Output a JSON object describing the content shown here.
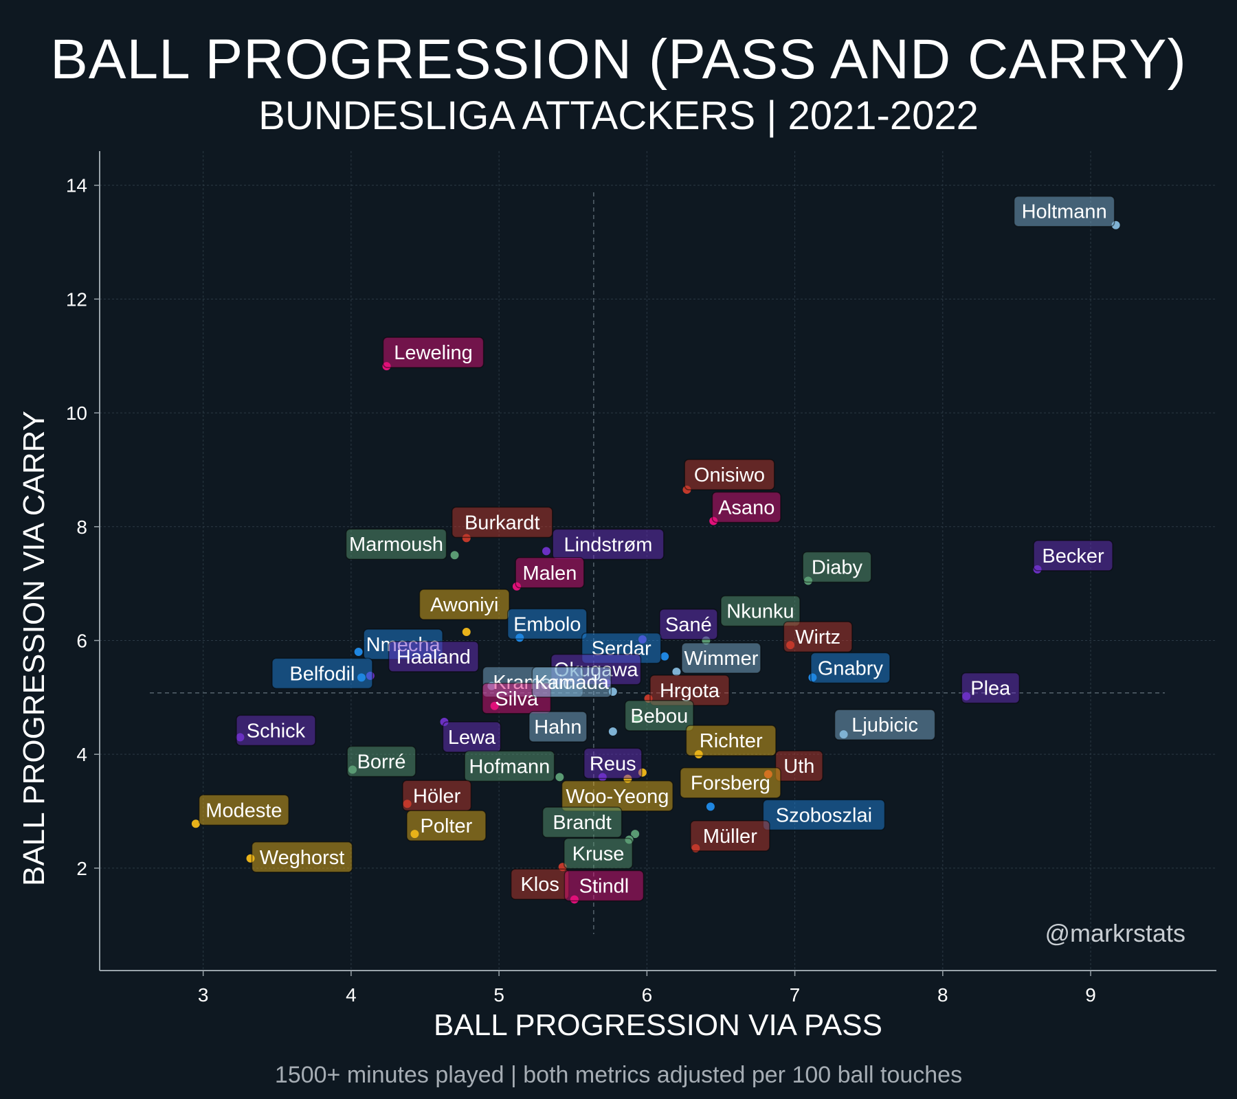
{
  "page": {
    "title": "BALL PROGRESSION (PASS AND CARRY)",
    "subtitle": "BUNDESLIGA ATTACKERS | 2021-2022",
    "footnote": "1500+ minutes played | both metrics adjusted per 100 ball touches",
    "watermark": "@markrstats"
  },
  "colors": {
    "background": "#0e1821",
    "red": "#c0392b",
    "pink": "#e0117a",
    "purple": "#6a30c2",
    "green": "#5a9a73",
    "blue": "#1f86e0",
    "lightblue": "#7fb2d4",
    "yellow": "#e8b21a"
  },
  "chart_data": {
    "type": "scatter",
    "title": "BALL PROGRESSION (PASS AND CARRY)",
    "subtitle": "BUNDESLIGA ATTACKERS | 2021-2022",
    "xlabel": "BALL PROGRESSION VIA PASS",
    "ylabel": "BALL PROGRESSION VIA CARRY",
    "xlim": [
      2.3,
      9.85
    ],
    "ylim": [
      0.2,
      14.6
    ],
    "xticks": [
      3,
      4,
      5,
      6,
      7,
      8,
      9
    ],
    "yticks": [
      2,
      4,
      6,
      8,
      10,
      12,
      14
    ],
    "grid": true,
    "mean_x": 5.64,
    "mean_y": 5.08,
    "points": [
      {
        "name": "Holtmann",
        "x": 9.17,
        "y": 13.3,
        "color": "lightblue"
      },
      {
        "name": "Leweling",
        "x": 4.24,
        "y": 10.82,
        "color": "pink"
      },
      {
        "name": "Onisiwo",
        "x": 6.27,
        "y": 8.65,
        "color": "red"
      },
      {
        "name": "Asano",
        "x": 6.45,
        "y": 8.1,
        "color": "pink"
      },
      {
        "name": "Burkardt",
        "x": 4.78,
        "y": 7.8,
        "color": "red"
      },
      {
        "name": "Marmoush",
        "x": 4.7,
        "y": 7.5,
        "color": "green"
      },
      {
        "name": "Lindstrøm",
        "x": 5.32,
        "y": 7.57,
        "color": "purple"
      },
      {
        "name": "Becker",
        "x": 8.64,
        "y": 7.25,
        "color": "purple"
      },
      {
        "name": "Diaby",
        "x": 7.09,
        "y": 7.05,
        "color": "green"
      },
      {
        "name": "Malen",
        "x": 5.12,
        "y": 6.95,
        "color": "pink"
      },
      {
        "name": "Awoniyi",
        "x": 4.78,
        "y": 6.15,
        "color": "yellow"
      },
      {
        "name": "Nkunku",
        "x": 6.4,
        "y": 6.0,
        "color": "green"
      },
      {
        "name": "Embolo",
        "x": 5.14,
        "y": 6.05,
        "color": "blue"
      },
      {
        "name": "Sané",
        "x": 5.97,
        "y": 6.02,
        "color": "purple"
      },
      {
        "name": "Wirtz",
        "x": 6.97,
        "y": 5.92,
        "color": "red"
      },
      {
        "name": "Nmecha",
        "x": 4.05,
        "y": 5.8,
        "color": "blue"
      },
      {
        "name": "Serdar",
        "x": 6.12,
        "y": 5.72,
        "color": "blue"
      },
      {
        "name": "Wimmer",
        "x": 6.2,
        "y": 5.45,
        "color": "lightblue"
      },
      {
        "name": "Gnabry",
        "x": 7.12,
        "y": 5.35,
        "color": "blue"
      },
      {
        "name": "Haaland",
        "x": 4.13,
        "y": 5.38,
        "color": "purple"
      },
      {
        "name": "Okugawa",
        "x": 5.73,
        "y": 5.25,
        "color": "purple"
      },
      {
        "name": "Belfodil",
        "x": 4.07,
        "y": 5.35,
        "color": "blue"
      },
      {
        "name": "Plea",
        "x": 8.16,
        "y": 5.02,
        "color": "purple"
      },
      {
        "name": "Hrgota",
        "x": 6.01,
        "y": 4.98,
        "color": "red"
      },
      {
        "name": "Kramaric",
        "x": 4.95,
        "y": 5.2,
        "color": "lightblue"
      },
      {
        "name": "Silva",
        "x": 4.97,
        "y": 4.85,
        "color": "pink"
      },
      {
        "name": "Kamada",
        "x": 5.77,
        "y": 5.1,
        "color": "lightblue"
      },
      {
        "name": "Bebou",
        "x": 5.93,
        "y": 4.62,
        "color": "green"
      },
      {
        "name": "Ljubicic",
        "x": 7.33,
        "y": 4.35,
        "color": "lightblue"
      },
      {
        "name": "Schick",
        "x": 3.25,
        "y": 4.3,
        "color": "purple"
      },
      {
        "name": "Richter",
        "x": 6.35,
        "y": 4.0,
        "color": "yellow"
      },
      {
        "name": "Lewa",
        "x": 4.63,
        "y": 4.57,
        "color": "purple"
      },
      {
        "name": "Hahn",
        "x": 5.77,
        "y": 4.4,
        "color": "lightblue"
      },
      {
        "name": "Uth",
        "x": 6.82,
        "y": 3.65,
        "color": "red"
      },
      {
        "name": "Borré",
        "x": 4.01,
        "y": 3.73,
        "color": "green"
      },
      {
        "name": "Reus",
        "x": 5.7,
        "y": 3.6,
        "color": "purple"
      },
      {
        "name": "Hofmann",
        "x": 5.41,
        "y": 3.6,
        "color": "green"
      },
      {
        "name": "Forsberg",
        "x": 5.97,
        "y": 3.68,
        "color": "yellow"
      },
      {
        "name": "Woo-Yeong",
        "x": 5.87,
        "y": 3.57,
        "color": "yellow"
      },
      {
        "name": "Höler",
        "x": 4.38,
        "y": 3.13,
        "color": "red"
      },
      {
        "name": "Szoboszlai",
        "x": 6.43,
        "y": 3.08,
        "color": "blue"
      },
      {
        "name": "Modeste",
        "x": 2.95,
        "y": 2.78,
        "color": "yellow"
      },
      {
        "name": "Polter",
        "x": 4.43,
        "y": 2.6,
        "color": "yellow"
      },
      {
        "name": "Brandt",
        "x": 5.92,
        "y": 2.6,
        "color": "green"
      },
      {
        "name": "Müller",
        "x": 6.33,
        "y": 2.35,
        "color": "red"
      },
      {
        "name": "Kruse",
        "x": 5.88,
        "y": 2.5,
        "color": "green"
      },
      {
        "name": "Weghorst",
        "x": 3.32,
        "y": 2.17,
        "color": "yellow"
      },
      {
        "name": "Klos",
        "x": 5.43,
        "y": 2.02,
        "color": "red"
      },
      {
        "name": "Stindl",
        "x": 5.51,
        "y": 1.45,
        "color": "pink"
      }
    ]
  }
}
